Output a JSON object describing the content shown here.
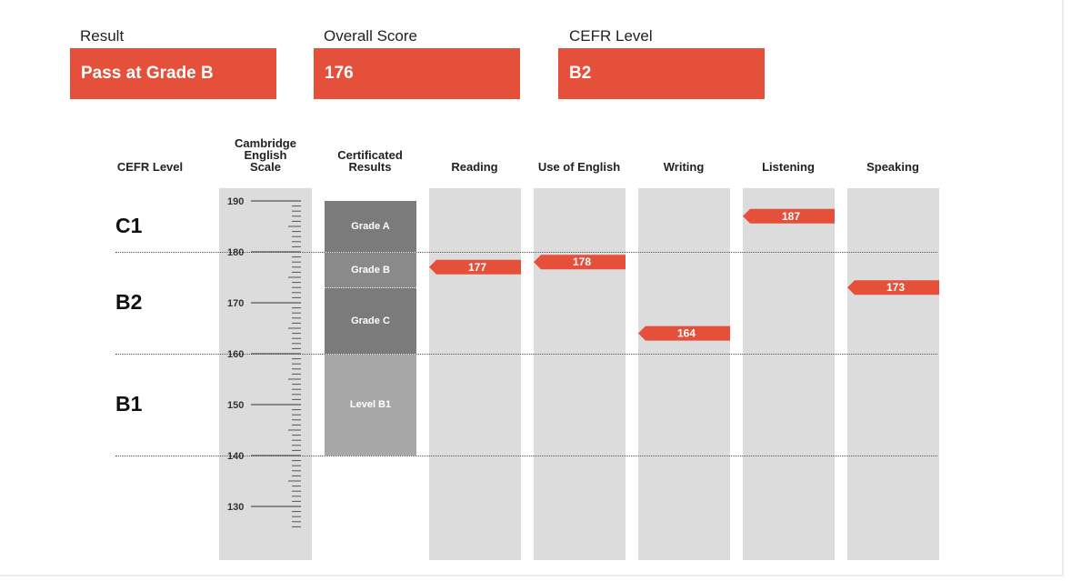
{
  "summary": {
    "result_label": "Result",
    "result_value": "Pass at Grade B",
    "score_label": "Overall Score",
    "score_value": "176",
    "cefr_label": "CEFR Level",
    "cefr_value": "B2"
  },
  "headers": {
    "cefr_level": "CEFR Level",
    "scale": [
      "Cambridge",
      "English",
      "Scale"
    ],
    "certificated": [
      "Certificated",
      "Results"
    ]
  },
  "colors": {
    "accent": "#e5503b",
    "column_bg": "#dcdcdc",
    "grade_a": "#7b7b7b",
    "grade_b": "#8a8a8a",
    "grade_c": "#7b7b7b",
    "level_b1": "#a7a7a7"
  },
  "chart_data": {
    "type": "bar",
    "title": "",
    "ylabel": "Cambridge English Scale",
    "ylim": [
      122,
      195
    ],
    "scale_ticks": [
      190,
      180,
      170,
      160,
      150,
      140,
      130
    ],
    "cefr_levels": [
      {
        "name": "C1",
        "min": 180,
        "max": 190
      },
      {
        "name": "B2",
        "min": 160,
        "max": 180
      },
      {
        "name": "B1",
        "min": 140,
        "max": 160
      }
    ],
    "certificated_results": [
      {
        "name": "Grade A",
        "min": 180,
        "max": 190
      },
      {
        "name": "Grade B",
        "min": 173,
        "max": 180
      },
      {
        "name": "Grade C",
        "min": 160,
        "max": 173
      },
      {
        "name": "Level B1",
        "min": 140,
        "max": 160
      }
    ],
    "categories": [
      "Reading",
      "Use of English",
      "Writing",
      "Listening",
      "Speaking"
    ],
    "values": [
      177,
      178,
      164,
      187,
      173
    ]
  }
}
